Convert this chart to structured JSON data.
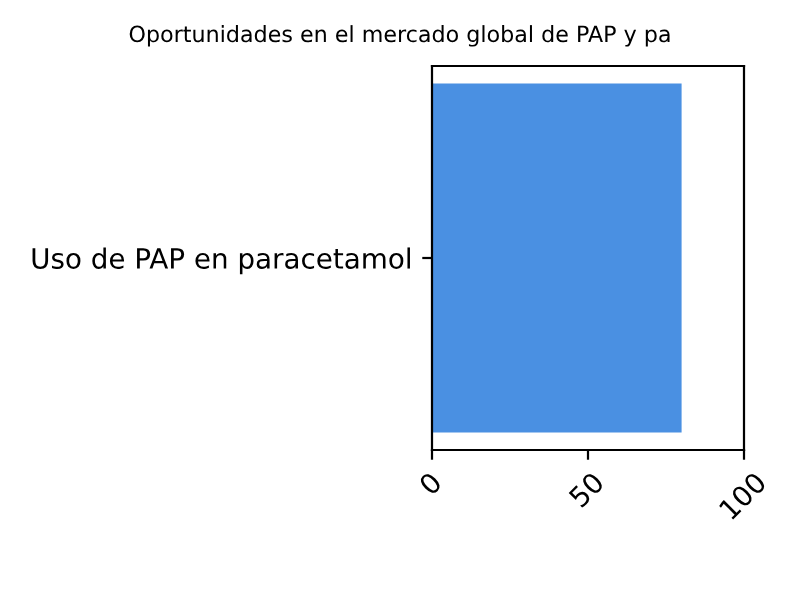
{
  "chart_data": {
    "type": "bar",
    "orientation": "horizontal",
    "title": "Oportunidades en el mercado global de PAP y pa",
    "categories": [
      "Uso de PAP en paracetamol"
    ],
    "series": [
      {
        "color": "#4a90e2",
        "values": [
          80
        ]
      }
    ],
    "xlim": [
      0,
      100
    ],
    "xticks": [
      0,
      50,
      100
    ],
    "grid": false,
    "legend": false
  }
}
